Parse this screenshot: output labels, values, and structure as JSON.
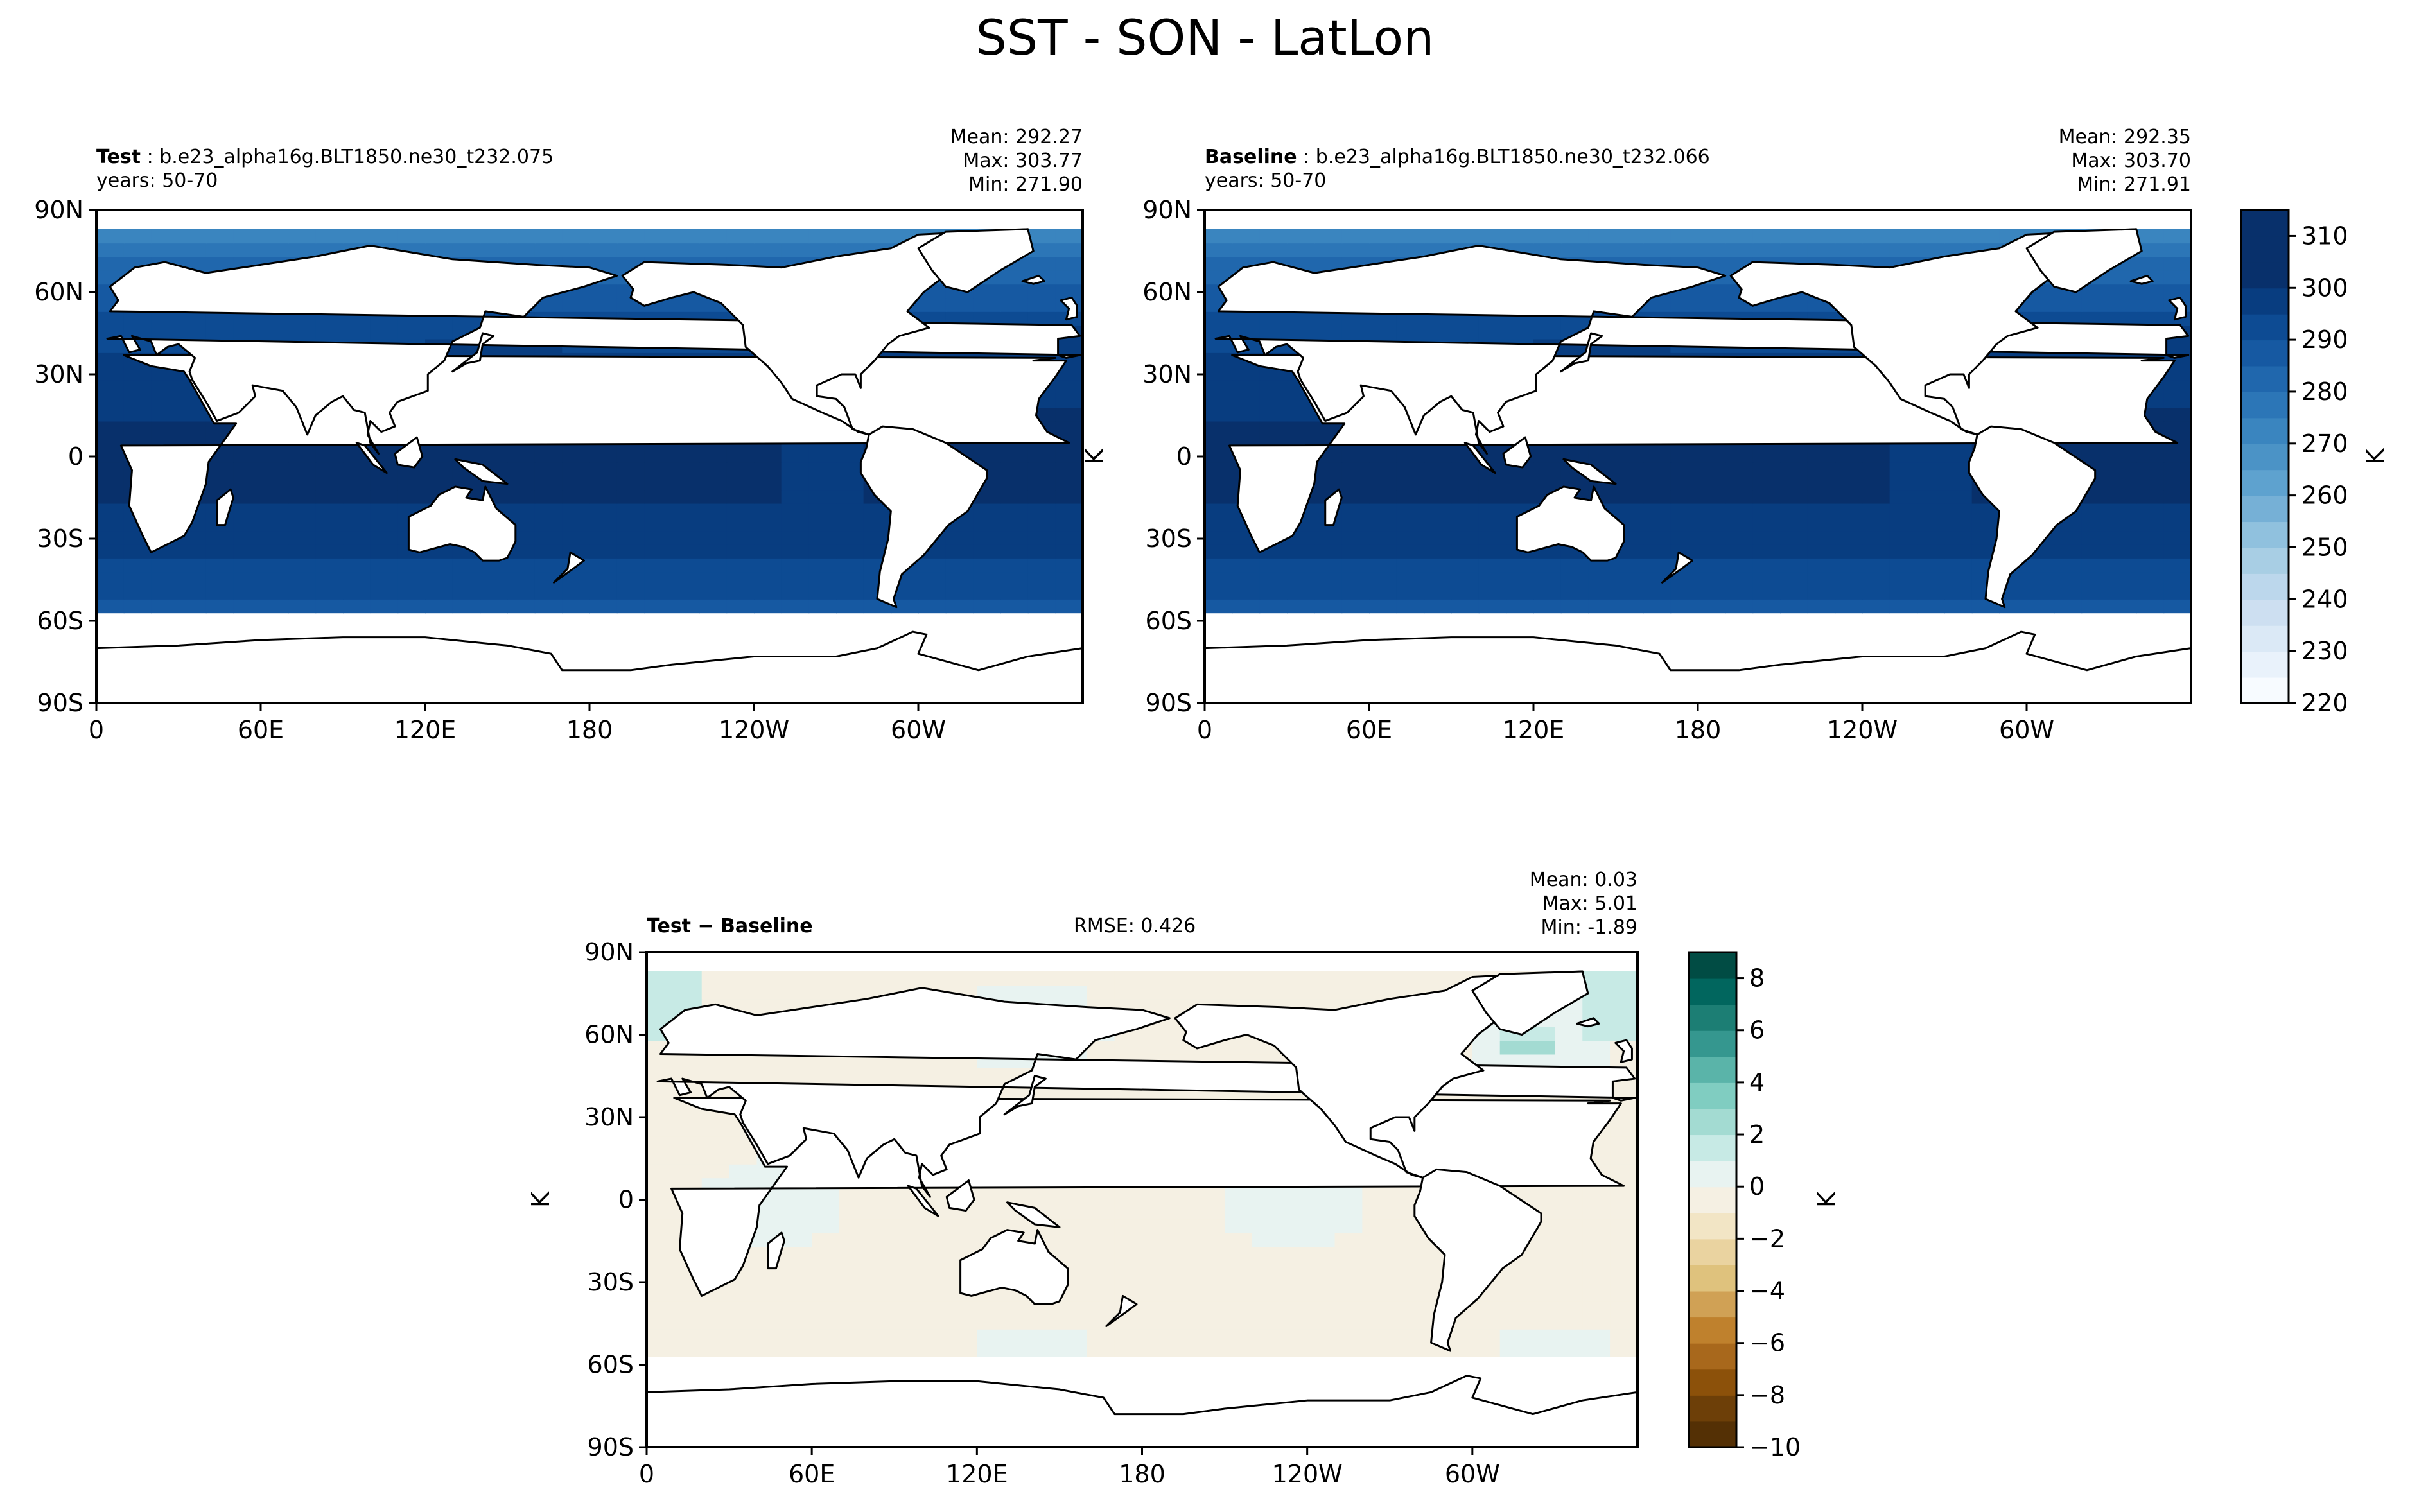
{
  "title": "SST - SON - LatLon",
  "panels": {
    "test": {
      "name_label": "Test",
      "case_name": "b.e23_alpha16g.BLT1850.ne30_t232.075",
      "years": "years: 50-70",
      "stats": [
        "Mean: 292.27",
        "Max: 303.77",
        "Min: 271.90"
      ],
      "y_unit_label": ""
    },
    "baseline": {
      "name_label": "Baseline",
      "case_name": "b.e23_alpha16g.BLT1850.ne30_t232.066",
      "years": "years: 50-70",
      "stats": [
        "Mean: 292.35",
        "Max: 303.70",
        "Min: 271.91"
      ],
      "y_unit_label": "K"
    },
    "diff": {
      "name_label": "Test − Baseline",
      "rmse": "RMSE: 0.426",
      "stats": [
        "Mean:  0.03",
        "Max:  5.01",
        "Min: -1.89"
      ],
      "y_unit_label": "K"
    }
  },
  "axes": {
    "lon_ticks": [
      {
        "lon": 0,
        "label": "0"
      },
      {
        "lon": 60,
        "label": "60E"
      },
      {
        "lon": 120,
        "label": "120E"
      },
      {
        "lon": 180,
        "label": "180"
      },
      {
        "lon": 240,
        "label": "120W"
      },
      {
        "lon": 300,
        "label": "60W"
      }
    ],
    "lat_ticks": [
      {
        "lat": 90,
        "label": "90N"
      },
      {
        "lat": 60,
        "label": "60N"
      },
      {
        "lat": 30,
        "label": "30N"
      },
      {
        "lat": 0,
        "label": "0"
      },
      {
        "lat": -30,
        "label": "30S"
      },
      {
        "lat": -60,
        "label": "60S"
      },
      {
        "lat": -90,
        "label": "90S"
      }
    ],
    "lon_range": [
      0,
      360
    ],
    "lat_range": [
      -90,
      90
    ]
  },
  "colorbars": {
    "main": {
      "unit": "K",
      "range": [
        220,
        315
      ],
      "ticks": [
        {
          "v": 220,
          "label": "220"
        },
        {
          "v": 230,
          "label": "230"
        },
        {
          "v": 240,
          "label": "240"
        },
        {
          "v": 250,
          "label": "250"
        },
        {
          "v": 260,
          "label": "260"
        },
        {
          "v": 270,
          "label": "270"
        },
        {
          "v": 280,
          "label": "280"
        },
        {
          "v": 290,
          "label": "290"
        },
        {
          "v": 300,
          "label": "300"
        },
        {
          "v": 310,
          "label": "310"
        }
      ],
      "colors": [
        "#f7fbff",
        "#e9f2fb",
        "#dbe9f6",
        "#cddff1",
        "#bcd7ec",
        "#a8cee4",
        "#90c1de",
        "#76b0d6",
        "#5ea2cf",
        "#4b93c6",
        "#3a85bf",
        "#2c76b7",
        "#2067ad",
        "#1659a2",
        "#0d4b93",
        "#083d80",
        "#08306b",
        "#08306b",
        "#08306b"
      ]
    },
    "diff": {
      "unit": "K",
      "range": [
        -10,
        9
      ],
      "ticks": [
        {
          "v": -10,
          "label": "−10"
        },
        {
          "v": -8,
          "label": "−8"
        },
        {
          "v": -6,
          "label": "−6"
        },
        {
          "v": -4,
          "label": "−4"
        },
        {
          "v": -2,
          "label": "−2"
        },
        {
          "v": 0,
          "label": "0"
        },
        {
          "v": 2,
          "label": "2"
        },
        {
          "v": 4,
          "label": "4"
        },
        {
          "v": 6,
          "label": "6"
        },
        {
          "v": 8,
          "label": "8"
        }
      ],
      "colors": [
        "#543005",
        "#6d3f08",
        "#8c510a",
        "#a8681c",
        "#bf812d",
        "#d0a155",
        "#dfc27d",
        "#ead3a0",
        "#f2e5c5",
        "#f5f0e3",
        "#e8f3f1",
        "#c7eae5",
        "#a3dbd2",
        "#80cdc1",
        "#5ab4a9",
        "#35978f",
        "#1c7e74",
        "#01665e",
        "#014c44"
      ]
    }
  },
  "chart_data": [
    {
      "type": "heatmap",
      "title": "Test : b.e23_alpha16g.BLT1850.ne30_t232.075",
      "subtitle": "years: 50-70",
      "variable": "SST",
      "units": "K",
      "annotations": [
        "Mean: 292.27",
        "Max: 303.77",
        "Min: 271.90"
      ],
      "x_tick_labels": [
        "0",
        "60E",
        "120E",
        "180",
        "120W",
        "60W"
      ],
      "y_tick_labels": [
        "90N",
        "60N",
        "30N",
        "0",
        "30S",
        "60S",
        "90S"
      ],
      "xlim": [
        0,
        360
      ],
      "ylim": [
        -90,
        90
      ],
      "zonal_profile": {
        "lat": [
          -60,
          -45,
          -30,
          -15,
          0,
          15,
          30,
          45,
          60,
          75
        ],
        "value": [
          272,
          281,
          292,
          298,
          300,
          301,
          296,
          285,
          277,
          272
        ]
      }
    },
    {
      "type": "heatmap",
      "title": "Baseline : b.e23_alpha16g.BLT1850.ne30_t232.066",
      "subtitle": "years: 50-70",
      "variable": "SST",
      "units": "K",
      "annotations": [
        "Mean: 292.35",
        "Max: 303.70",
        "Min: 271.91"
      ],
      "x_tick_labels": [
        "0",
        "60E",
        "120E",
        "180",
        "120W",
        "60W"
      ],
      "y_tick_labels": [
        "90N",
        "60N",
        "30N",
        "0",
        "30S",
        "60S",
        "90S"
      ],
      "xlim": [
        0,
        360
      ],
      "ylim": [
        -90,
        90
      ],
      "zonal_profile": {
        "lat": [
          -60,
          -45,
          -30,
          -15,
          0,
          15,
          30,
          45,
          60,
          75
        ],
        "value": [
          272,
          281,
          292,
          298,
          300,
          301,
          296,
          285,
          277,
          272
        ]
      }
    },
    {
      "type": "heatmap",
      "title": "Test − Baseline",
      "variable": "SST difference",
      "units": "K",
      "annotations": [
        "RMSE: 0.426",
        "Mean:  0.03",
        "Max:  5.01",
        "Min: -1.89"
      ],
      "x_tick_labels": [
        "0",
        "60E",
        "120E",
        "180",
        "120W",
        "60W"
      ],
      "y_tick_labels": [
        "90N",
        "60N",
        "30N",
        "0",
        "30S",
        "60S",
        "90S"
      ],
      "xlim": [
        0,
        360
      ],
      "ylim": [
        -90,
        90
      ],
      "colorbar_range": [
        -10,
        9
      ]
    }
  ]
}
